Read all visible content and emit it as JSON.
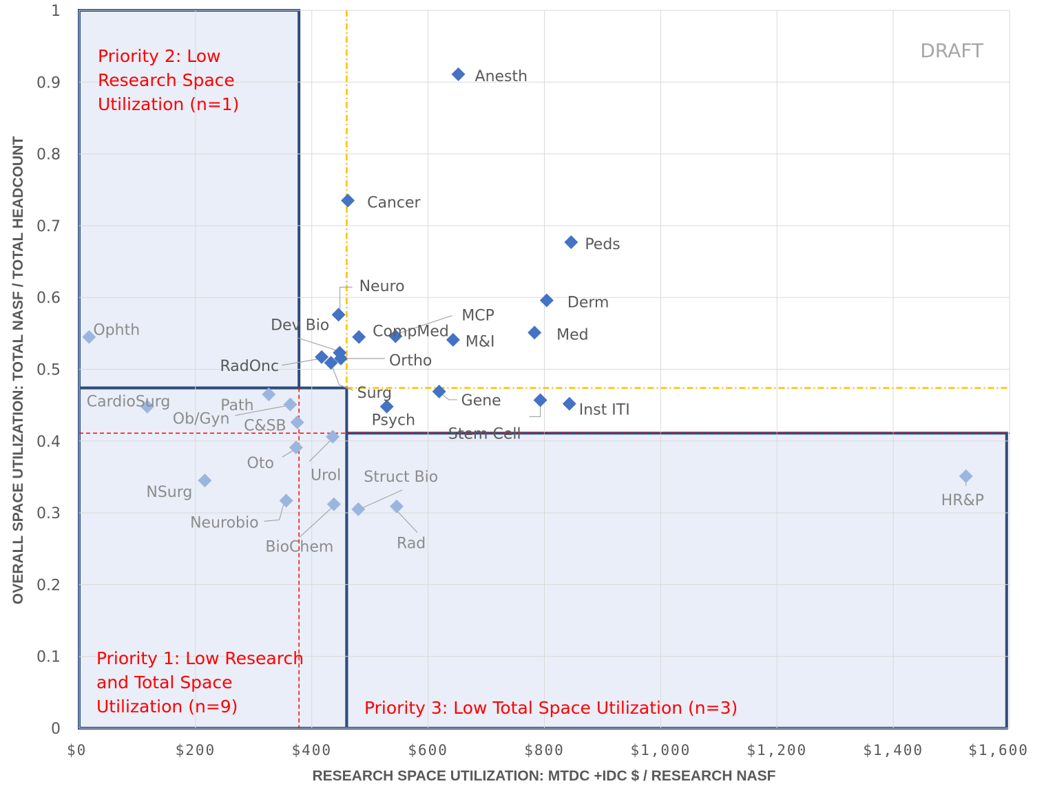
{
  "chart_data": {
    "type": "scatter",
    "xlabel": "RESEARCH SPACE UTILIZATION: MTDC +IDC $ / RESEARCH NASF",
    "ylabel": "OVERALL SPACE UTILIZATION: TOTAL NASF / TOTAL HEADCOUNT",
    "xlim": [
      0,
      1600
    ],
    "ylim": [
      0,
      1
    ],
    "x_tick_labels": [
      "$0",
      "$200",
      "$400",
      "$600",
      "$800",
      "$1,000",
      "$1,200",
      "$1,400",
      "$1,600"
    ],
    "y_tick_labels": [
      "0",
      "0.1",
      "0.2",
      "0.3",
      "0.4",
      "0.5",
      "0.6",
      "0.7",
      "0.8",
      "0.9",
      "1"
    ],
    "grid": true,
    "watermark": "DRAFT",
    "thresholds": {
      "x_yellow": 460,
      "y_yellow": 0.474,
      "x_red": 378,
      "y_red": 0.411
    },
    "regions": [
      {
        "label_lines": [
          "Priority 2: Low",
          "Research Space",
          "Utilization (n=1)"
        ],
        "x0": 0,
        "x1": 378,
        "y0": 0.474,
        "y1": 1.0
      },
      {
        "label_lines": [
          "Priority 1: Low Research",
          "and Total Space",
          "Utilization (n=9)"
        ],
        "x0": 0,
        "x1": 460,
        "y0": 0,
        "y1": 0.474
      },
      {
        "label_lines": [
          "Priority 3: Low Total Space Utilization (n=3)"
        ],
        "x0": 460,
        "x1": 1595,
        "y0": 0,
        "y1": 0.411
      }
    ],
    "points": [
      {
        "name": "Anesth",
        "x": 652,
        "y": 0.911,
        "group": "other"
      },
      {
        "name": "Cancer",
        "x": 462,
        "y": 0.735,
        "group": "other"
      },
      {
        "name": "Peds",
        "x": 846,
        "y": 0.677,
        "group": "other"
      },
      {
        "name": "Derm",
        "x": 804,
        "y": 0.596,
        "group": "other"
      },
      {
        "name": "Neuro",
        "x": 446,
        "y": 0.576,
        "group": "other"
      },
      {
        "name": "CompMed",
        "x": 481,
        "y": 0.545,
        "group": "other"
      },
      {
        "name": "MCP",
        "x": 544,
        "y": 0.546,
        "group": "other"
      },
      {
        "name": "M&I",
        "x": 643,
        "y": 0.541,
        "group": "other"
      },
      {
        "name": "Med",
        "x": 783,
        "y": 0.551,
        "group": "other"
      },
      {
        "name": "Dev Bio",
        "x": 448,
        "y": 0.523,
        "group": "other"
      },
      {
        "name": "Ortho",
        "x": 450,
        "y": 0.515,
        "group": "other"
      },
      {
        "name": "RadOnc",
        "x": 417,
        "y": 0.517,
        "group": "other"
      },
      {
        "name": "Surg",
        "x": 433,
        "y": 0.509,
        "group": "other"
      },
      {
        "name": "Gene",
        "x": 619,
        "y": 0.469,
        "group": "other"
      },
      {
        "name": "Stem Cell",
        "x": 793,
        "y": 0.457,
        "group": "other"
      },
      {
        "name": "Inst  ITI",
        "x": 843,
        "y": 0.452,
        "group": "other"
      },
      {
        "name": "Psych",
        "x": 529,
        "y": 0.448,
        "group": "other"
      },
      {
        "name": "Ophth",
        "x": 17,
        "y": 0.545,
        "group": "priority"
      },
      {
        "name": "CardioSurg",
        "x": 117,
        "y": 0.448,
        "group": "priority"
      },
      {
        "name": "Path",
        "x": 326,
        "y": 0.465,
        "group": "priority"
      },
      {
        "name": "Ob/Gyn",
        "x": 363,
        "y": 0.451,
        "group": "priority"
      },
      {
        "name": "C&SB",
        "x": 375,
        "y": 0.426,
        "group": "priority"
      },
      {
        "name": "Urol",
        "x": 436,
        "y": 0.406,
        "group": "priority"
      },
      {
        "name": "Oto",
        "x": 373,
        "y": 0.391,
        "group": "priority"
      },
      {
        "name": "NSurg",
        "x": 216,
        "y": 0.345,
        "group": "priority"
      },
      {
        "name": "Neurobio",
        "x": 356,
        "y": 0.317,
        "group": "priority"
      },
      {
        "name": "BioChem",
        "x": 438,
        "y": 0.312,
        "group": "priority"
      },
      {
        "name": "Struct Bio",
        "x": 480,
        "y": 0.305,
        "group": "priority"
      },
      {
        "name": "Rad",
        "x": 546,
        "y": 0.309,
        "group": "priority"
      },
      {
        "name": "HR&P",
        "x": 1525,
        "y": 0.351,
        "group": "priority"
      }
    ]
  },
  "colors": {
    "marker": "#4472c4",
    "marker_light": "#9bb6de",
    "label": "#595959",
    "label_light": "#8c8c8c",
    "region_fill": "#e9eef8",
    "region_stroke": "#2f4b7c",
    "yellow_line": "#ffc000",
    "red_line": "#ff0000"
  }
}
